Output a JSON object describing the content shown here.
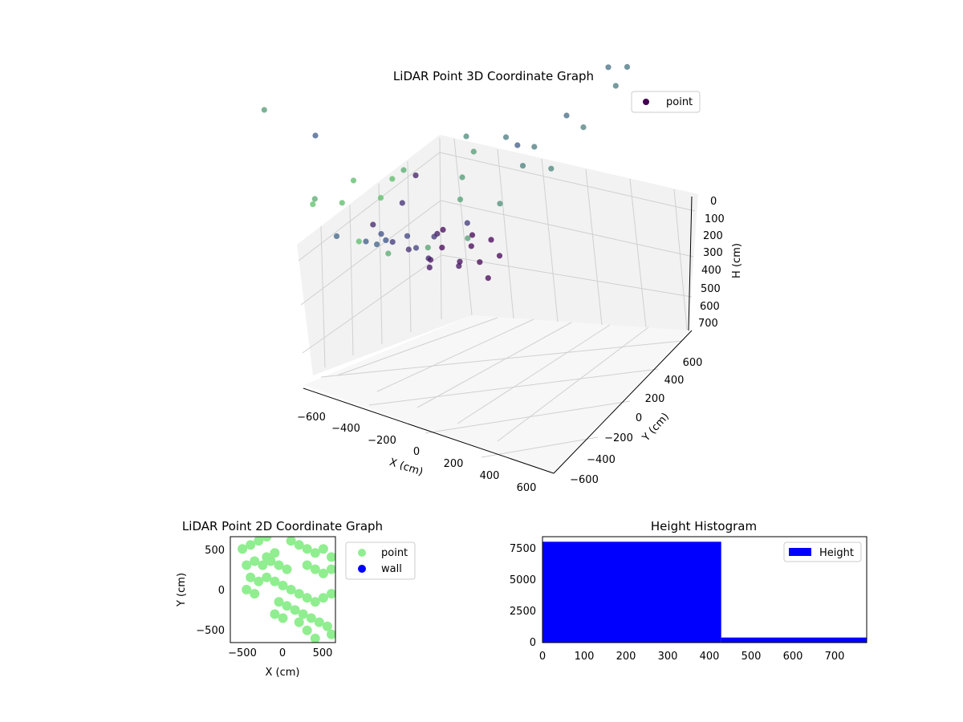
{
  "colors": {
    "scatter_cmap_low": "#440154",
    "scatter_cmap_mid": "#3b528b",
    "scatter_cmap_high": "#5ec962",
    "pane_gray": "#f2f2f2",
    "grid_gray": "#d0d0d0",
    "point_2d": "#90ee90",
    "wall_2d": "#0000ff",
    "histogram": "#0000ff"
  },
  "chart_data": [
    {
      "type": "scatter",
      "projection": "3d",
      "title": "LiDAR Point 3D Coordinate Graph",
      "xlabel": "X (cm)",
      "ylabel": "Y (cm)",
      "zlabel": "H (cm)",
      "xticks": [
        "−600",
        "−400",
        "−200",
        "0",
        "200",
        "400",
        "600"
      ],
      "yticks": [
        "−600",
        "−400",
        "−200",
        "0",
        "200",
        "400",
        "600"
      ],
      "zticks": [
        "0",
        "100",
        "200",
        "300",
        "400",
        "500",
        "600",
        "700"
      ],
      "zaxis_inverted": true,
      "xlim": [
        -650,
        650
      ],
      "ylim": [
        -650,
        650
      ],
      "zlim": [
        0,
        750
      ],
      "colormap": "viridis by height",
      "legend": {
        "entries": [
          "point"
        ],
        "placement": "top-right"
      },
      "series": [
        {
          "name": "point",
          "points": [
            [
              -100,
              300,
              0
            ],
            [
              -50,
              250,
              10
            ],
            [
              0,
              300,
              5
            ],
            [
              50,
              200,
              15
            ],
            [
              100,
              250,
              10
            ],
            [
              -150,
              200,
              20
            ],
            [
              -200,
              250,
              30
            ],
            [
              150,
              150,
              20
            ],
            [
              0,
              150,
              40
            ],
            [
              -100,
              100,
              60
            ],
            [
              -50,
              50,
              80
            ],
            [
              50,
              100,
              70
            ],
            [
              -120,
              150,
              100
            ],
            [
              0,
              0,
              150
            ],
            [
              -50,
              -50,
              200
            ],
            [
              30,
              0,
              220
            ],
            [
              -80,
              -100,
              250
            ],
            [
              20,
              -120,
              300
            ],
            [
              -30,
              -200,
              350
            ],
            [
              50,
              -250,
              380
            ],
            [
              0,
              -300,
              400
            ],
            [
              80,
              -320,
              420
            ],
            [
              -100,
              -350,
              430
            ],
            [
              100,
              -150,
              300
            ],
            [
              150,
              50,
              250
            ],
            [
              -250,
              100,
              200
            ],
            [
              -350,
              50,
              150
            ],
            [
              -600,
              0,
              400
            ],
            [
              -650,
              -200,
              600
            ],
            [
              -400,
              300,
              120
            ],
            [
              250,
              200,
              400
            ],
            [
              300,
              100,
              500
            ],
            [
              200,
              0,
              550
            ],
            [
              350,
              -100,
              600
            ],
            [
              400,
              300,
              450
            ],
            [
              450,
              100,
              500
            ],
            [
              500,
              0,
              520
            ],
            [
              200,
              -300,
              650
            ],
            [
              250,
              -400,
              700
            ],
            [
              300,
              -500,
              720
            ],
            [
              100,
              -450,
              700
            ],
            [
              150,
              -550,
              710
            ],
            [
              50,
              -600,
              720
            ],
            [
              -50,
              -500,
              650
            ],
            [
              400,
              -200,
              600
            ],
            [
              500,
              -300,
              620
            ],
            [
              550,
              400,
              500
            ],
            [
              600,
              200,
              520
            ],
            [
              650,
              0,
              540
            ],
            [
              600,
              -200,
              560
            ],
            [
              650,
              -400,
              600
            ],
            [
              550,
              -500,
              620
            ],
            [
              450,
              -600,
              650
            ],
            [
              350,
              -650,
              700
            ],
            [
              500,
              500,
              480
            ],
            [
              400,
              500,
              460
            ]
          ]
        }
      ]
    },
    {
      "type": "scatter",
      "title": "LiDAR Point 2D Coordinate Graph",
      "xlabel": "X (cm)",
      "ylabel": "Y (cm)",
      "xticks": [
        "−500",
        "0",
        "500"
      ],
      "yticks": [
        "500",
        "0",
        "−500"
      ],
      "xlim": [
        -650,
        650
      ],
      "ylim": [
        -650,
        650
      ],
      "legend": {
        "entries": [
          "point",
          "wall"
        ],
        "placement": "outside-right"
      },
      "series": [
        {
          "name": "point",
          "points": [
            [
              -500,
              500
            ],
            [
              -400,
              550
            ],
            [
              -300,
              600
            ],
            [
              -200,
              650
            ],
            [
              100,
              600
            ],
            [
              200,
              550
            ],
            [
              300,
              500
            ],
            [
              400,
              450
            ],
            [
              500,
              500
            ],
            [
              600,
              400
            ],
            [
              -450,
              300
            ],
            [
              -350,
              350
            ],
            [
              -250,
              300
            ],
            [
              -150,
              350
            ],
            [
              -50,
              300
            ],
            [
              50,
              250
            ],
            [
              -400,
              150
            ],
            [
              -300,
              100
            ],
            [
              -200,
              150
            ],
            [
              -100,
              100
            ],
            [
              0,
              50
            ],
            [
              100,
              0
            ],
            [
              200,
              -50
            ],
            [
              300,
              -100
            ],
            [
              400,
              -150
            ],
            [
              500,
              -100
            ],
            [
              600,
              -50
            ],
            [
              -450,
              0
            ],
            [
              -350,
              -50
            ],
            [
              -50,
              -150
            ],
            [
              50,
              -200
            ],
            [
              150,
              -250
            ],
            [
              250,
              -300
            ],
            [
              350,
              -350
            ],
            [
              450,
              -400
            ],
            [
              550,
              -450
            ],
            [
              600,
              -550
            ],
            [
              400,
              -600
            ],
            [
              300,
              -500
            ],
            [
              200,
              -400
            ],
            [
              0,
              -350
            ],
            [
              -100,
              -300
            ],
            [
              300,
              300
            ],
            [
              400,
              250
            ],
            [
              500,
              200
            ],
            [
              600,
              250
            ],
            [
              -200,
              400
            ],
            [
              -100,
              450
            ]
          ]
        },
        {
          "name": "wall",
          "points": []
        }
      ]
    },
    {
      "type": "bar",
      "title": "Height Histogram",
      "xticks": [
        "0",
        "100",
        "200",
        "300",
        "400",
        "500",
        "600",
        "700"
      ],
      "yticks": [
        "0",
        "2500",
        "5000",
        "7500"
      ],
      "xlim": [
        0,
        780
      ],
      "ylim": [
        0,
        8400
      ],
      "legend": {
        "entries": [
          "Height"
        ],
        "placement": "top-right"
      },
      "bins": [
        {
          "start": 0,
          "end": 430,
          "count": 8000
        },
        {
          "start": 430,
          "end": 780,
          "count": 400
        }
      ]
    }
  ]
}
